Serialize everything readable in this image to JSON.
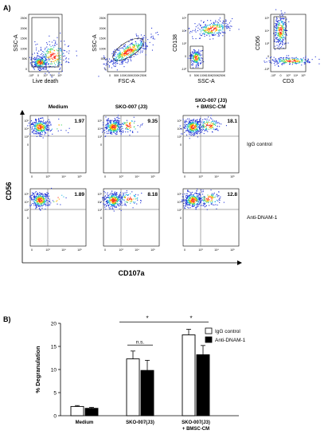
{
  "panels": {
    "a": "A)",
    "b": "B)"
  },
  "gating": [
    {
      "xlabel": "Live death",
      "ylabel": "SSC-A",
      "xticks": [
        "-10³",
        "0",
        "10³",
        "10⁴",
        "10⁵"
      ],
      "yticks": [
        "250K",
        "200K",
        "150K",
        "100K",
        "50K",
        "0"
      ]
    },
    {
      "xlabel": "FSC-A",
      "ylabel": "SSC-A",
      "xticks": [
        "0",
        "50K",
        "100K",
        "150K",
        "200K",
        "250K"
      ],
      "yticks": [
        "250K",
        "200K",
        "150K",
        "100K",
        "50K",
        "0"
      ]
    },
    {
      "xlabel": "SSC-A",
      "ylabel": "CD138",
      "xticks": [
        "0",
        "50K",
        "100K",
        "150K",
        "200K",
        "250K"
      ],
      "yticks": [
        "10⁵",
        "10⁴",
        "10³",
        "0",
        "-10³"
      ]
    },
    {
      "xlabel": "CD3",
      "ylabel": "CD56",
      "xticks": [
        "-10³",
        "0",
        "10³",
        "10⁴",
        "10⁵"
      ],
      "yticks": [
        "10⁵",
        "10⁴",
        "10³",
        "0",
        "-10³"
      ]
    }
  ],
  "flow": {
    "columns": [
      "Medium",
      "SKO-007 (J3)",
      "SKO-007 (J3)\n+ BMSC-CM"
    ],
    "rows": [
      {
        "label": "IgG control",
        "values": [
          "1.97",
          "9.35",
          "18.1"
        ]
      },
      {
        "label": "Anti-DNAM-1",
        "values": [
          "1.89",
          "8.18",
          "12.8"
        ]
      }
    ],
    "yaxis_label": "CD56",
    "xaxis_label": "CD107a",
    "yticks": [
      "10⁵",
      "10⁴",
      "10³",
      "0"
    ],
    "xticks": [
      "0",
      "10³",
      "10⁴",
      "10⁵"
    ]
  },
  "chart_data": {
    "type": "bar",
    "categories": [
      "Medium",
      "SKO-007(J3)",
      "SKO-007(J3)\n+ BMSC-CM"
    ],
    "series": [
      {
        "name": "IgG control",
        "color": "#ffffff",
        "values": [
          2.0,
          12.3,
          17.5
        ],
        "errors": [
          0.2,
          1.7,
          1.2
        ]
      },
      {
        "name": "Anti-DNAM-1",
        "color": "#000000",
        "values": [
          1.6,
          9.8,
          13.2
        ],
        "errors": [
          0.2,
          2.2,
          2.0
        ]
      }
    ],
    "ylabel": "% Degranulation",
    "xlabel": "",
    "ylim": [
      0,
      20
    ],
    "yticks": [
      0,
      5,
      10,
      15,
      20
    ],
    "legend_position": "top-right",
    "significance": [
      {
        "from": 1,
        "to": 2,
        "label": "*"
      },
      {
        "from": 0,
        "to": 2,
        "label": "*"
      },
      {
        "from": 1,
        "to": 1,
        "label": "n.s."
      }
    ]
  }
}
